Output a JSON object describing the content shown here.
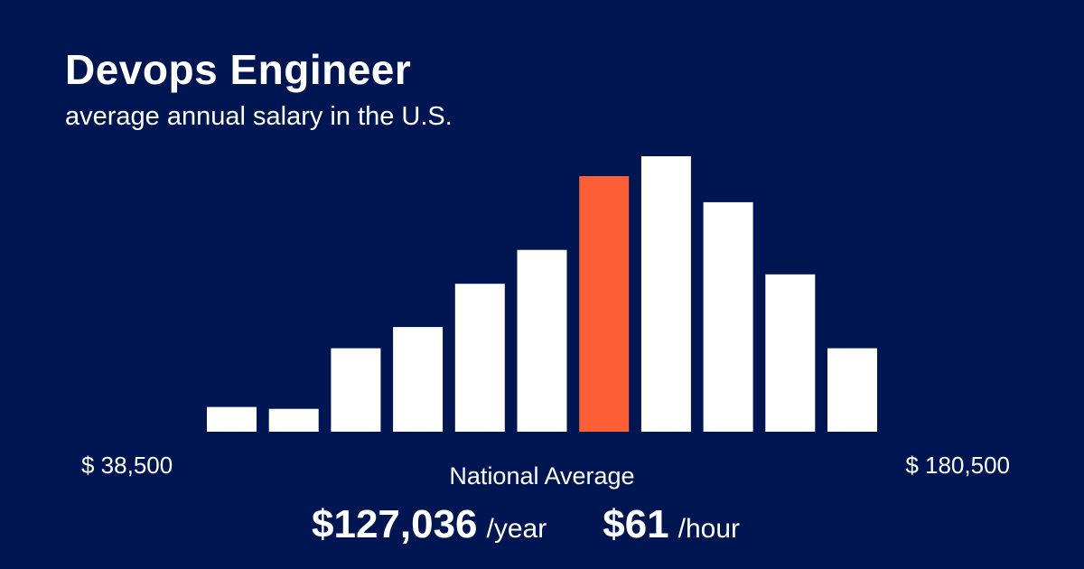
{
  "header": {
    "title": "Devops Engineer",
    "subtitle": "average annual salary in the U.S."
  },
  "colors": {
    "background": "#001652",
    "bar": "#ffffff",
    "highlight": "#fc5e35"
  },
  "chart_data": {
    "type": "bar",
    "title": "Devops Engineer",
    "subtitle": "average annual salary in the U.S.",
    "xlabel": "",
    "ylabel": "",
    "grid": false,
    "range_min_label": "$ 38,500",
    "range_max_label": "$ 180,500",
    "values": [
      9,
      8.3,
      30.3,
      38,
      53.7,
      66,
      92.8,
      100,
      83.3,
      57.1,
      30.3
    ],
    "highlight_index": 6,
    "ylim": [
      0,
      100
    ]
  },
  "summary": {
    "label": "National Average",
    "annual_value": "$127,036",
    "annual_unit": "/year",
    "hourly_value": "$61",
    "hourly_unit": "/hour"
  }
}
